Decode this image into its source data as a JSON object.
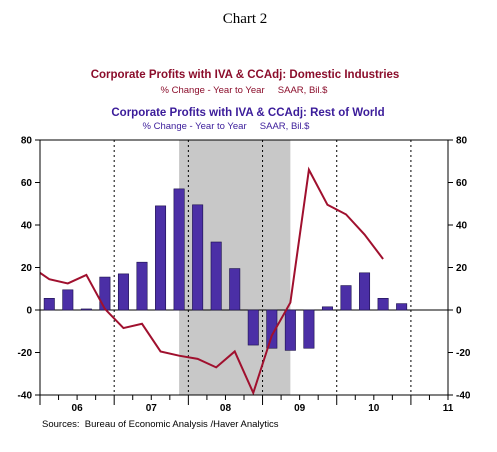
{
  "chart_data": {
    "type": "bar",
    "chart_number": "Chart 2",
    "title_domestic": "Corporate Profits with IVA & CCAdj: Domestic Industries",
    "subtitle_domestic": "% Change - Year to Year     SAAR, Bil.$",
    "title_row": "Corporate Profits with IVA & CCAdj: Rest of World",
    "subtitle_row": "% Change - Year to Year     SAAR, Bil.$",
    "source": "Sources:  Bureau of Economic Analysis /Haver Analytics",
    "ylim": [
      -40,
      80
    ],
    "yticks": [
      "80",
      "60",
      "40",
      "20",
      "0",
      "-20",
      "-40"
    ],
    "ytick_values": [
      80,
      60,
      40,
      20,
      0,
      -20,
      -40
    ],
    "year_labels": [
      "06",
      "07",
      "08",
      "09",
      "10",
      "11"
    ],
    "x_start": 2006.0,
    "x_end": 2011.5,
    "recession": [
      2007.875,
      2009.375
    ],
    "colors": {
      "bars": "#4b2fa6",
      "bar_edge": "#1a0f4a",
      "line": "#a0102e",
      "recession": "#c8c8c8",
      "title_domestic": "#8b0d2b",
      "title_row": "#3b1c9a"
    },
    "bars": {
      "name": "Rest of World",
      "x": [
        2006.125,
        2006.375,
        2006.625,
        2006.875,
        2007.125,
        2007.375,
        2007.625,
        2007.875,
        2008.125,
        2008.375,
        2008.625,
        2008.875,
        2009.125,
        2009.375,
        2009.625,
        2009.875,
        2010.125,
        2010.375,
        2010.625,
        2010.875
      ],
      "values": [
        5.5,
        9.5,
        0.5,
        15.5,
        17,
        22.5,
        49,
        57,
        49.5,
        32,
        19.5,
        -16.5,
        -18,
        -19,
        -18,
        1.5,
        11.5,
        17.5,
        5.5,
        3
      ]
    },
    "line": {
      "name": "Domestic Industries",
      "x": [
        2006.0,
        2006.125,
        2006.375,
        2006.625,
        2006.875,
        2007.125,
        2007.375,
        2007.625,
        2007.875,
        2008.125,
        2008.375,
        2008.625,
        2008.875,
        2009.125,
        2009.375,
        2009.625,
        2009.875,
        2010.125,
        2010.375,
        2010.625
      ],
      "values": [
        17.5,
        14.5,
        12.5,
        16.5,
        0.5,
        -8.5,
        -6.5,
        -19.5,
        -21.5,
        -23,
        -27,
        -19.5,
        -39,
        -12,
        3.5,
        66,
        49.5,
        45,
        35.5,
        24
      ]
    }
  }
}
